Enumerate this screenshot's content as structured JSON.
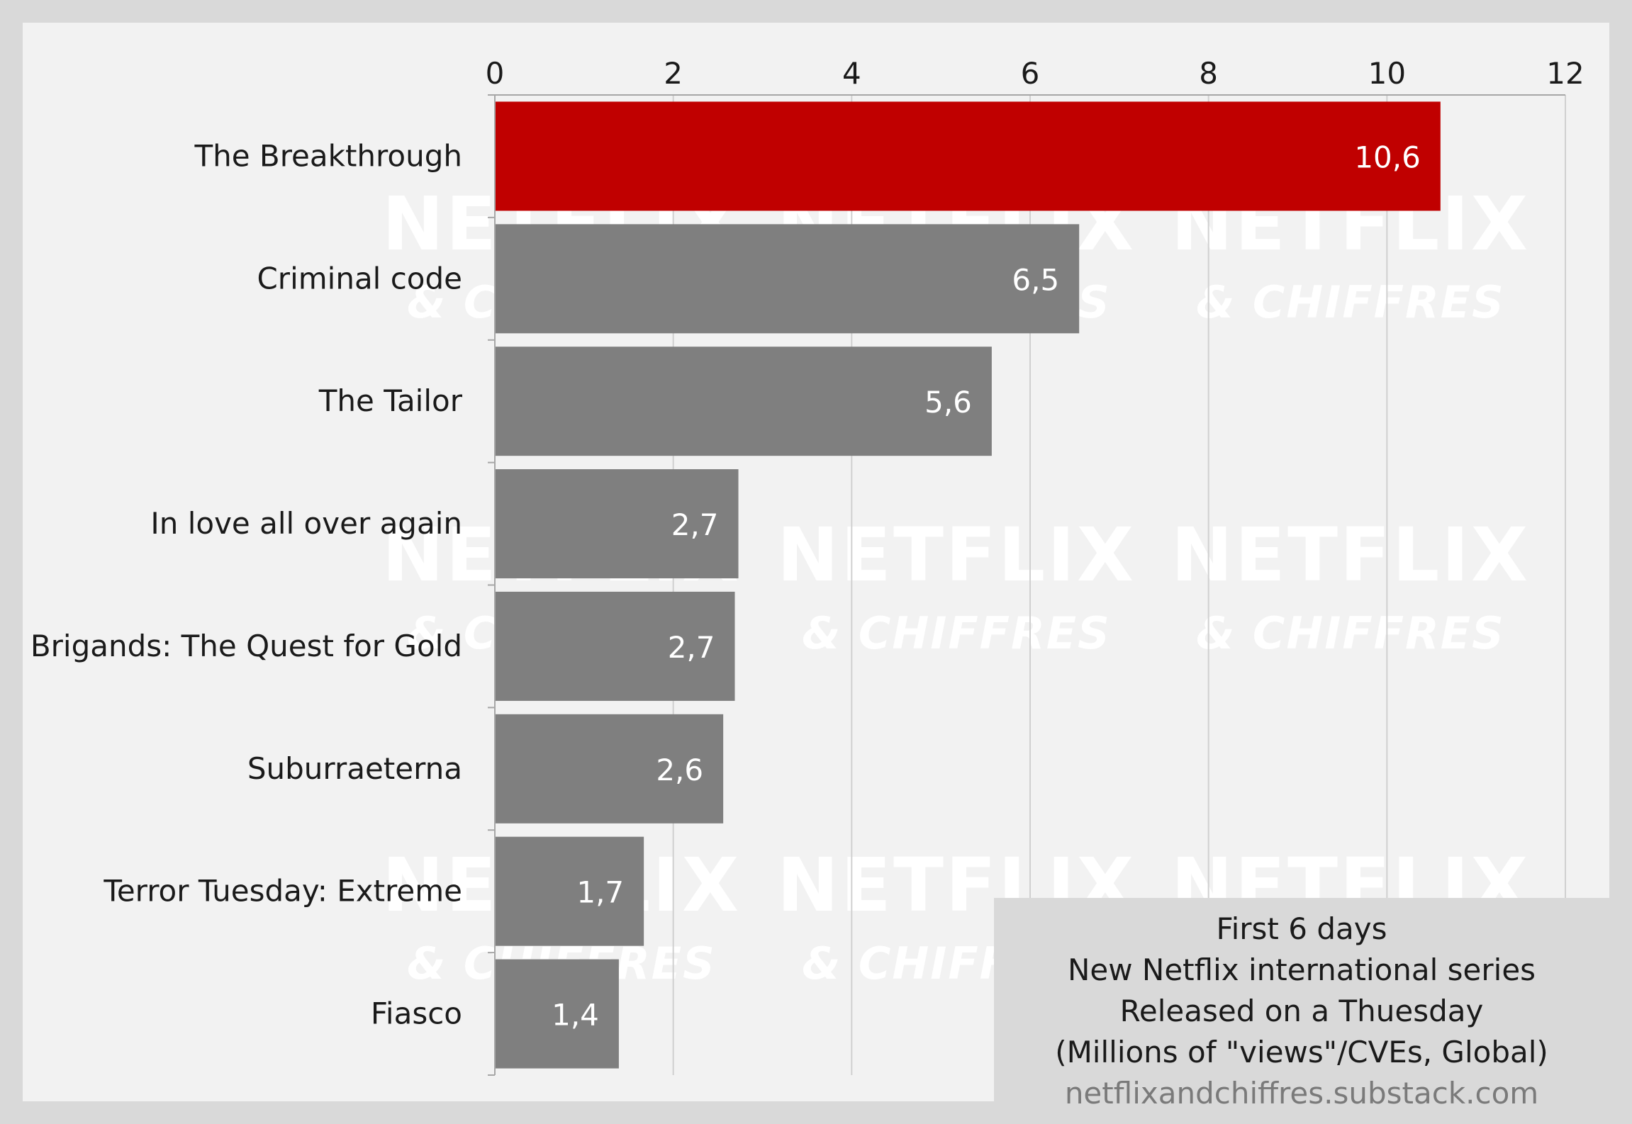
{
  "chart_data": {
    "type": "bar",
    "orientation": "horizontal",
    "categories": [
      "The Breakthrough",
      "Criminal code",
      "The Tailor",
      "In love all over again",
      "Brigands: The Quest for Gold",
      "Suburraeterna",
      "Terror Tuesday: Extreme",
      "Fiasco"
    ],
    "values": [
      10.6,
      6.55,
      5.57,
      2.73,
      2.69,
      2.56,
      1.67,
      1.39
    ],
    "value_labels": [
      "10,6",
      "6,5",
      "5,6",
      "2,7",
      "2,7",
      "2,6",
      "1,7",
      "1,4"
    ],
    "xlim": [
      0,
      12
    ],
    "xticks": [
      "0",
      "2",
      "4",
      "6",
      "8",
      "10",
      "12"
    ],
    "x_axis_position": "top",
    "grid": true,
    "colors": {
      "highlight": "#c00000",
      "bar": "#7f7f7f",
      "panel_background": "#f2f2f2",
      "outer_background": "#d9d9d9",
      "gridline": "#d0d0d0"
    }
  },
  "watermark": {
    "line1": "NETFLIX",
    "line2": "& CHIFFRES"
  },
  "info_box": {
    "line1": "First 6 days",
    "line2": "New Netflix international series",
    "line3": "Released on a Thuesday",
    "line4": "(Millions of \"views\"/CVEs, Global)",
    "source": "netflixandchiffres.substack.com"
  }
}
